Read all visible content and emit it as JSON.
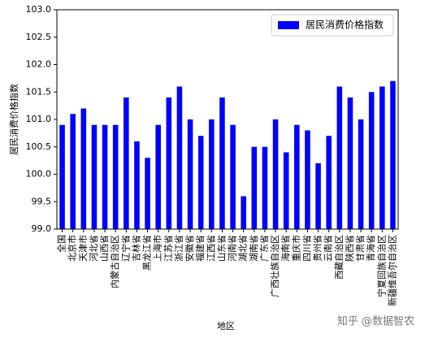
{
  "chart_data": {
    "type": "bar",
    "categories": [
      "全国",
      "北京市",
      "天津市",
      "河北省",
      "山西省",
      "内蒙古自治区",
      "辽宁省",
      "吉林省",
      "黑龙江省",
      "上海市",
      "江苏省",
      "浙江省",
      "安徽省",
      "福建省",
      "江西省",
      "山东省",
      "河南省",
      "湖北省",
      "湖南省",
      "广东省",
      "广西壮族自治区",
      "海南省",
      "重庆市",
      "四川省",
      "贵州省",
      "云南省",
      "西藏自治区",
      "陕西省",
      "甘肃省",
      "青海省",
      "宁夏回族自治区",
      "新疆维吾尔自治区"
    ],
    "series": [
      {
        "name": "居民消费价格指数",
        "color": "#0000ff",
        "values": [
          100.9,
          101.1,
          101.2,
          100.9,
          100.9,
          100.9,
          101.4,
          100.6,
          100.3,
          100.9,
          101.4,
          101.6,
          101.0,
          100.7,
          101.0,
          101.4,
          100.9,
          99.6,
          100.5,
          100.5,
          101.0,
          100.4,
          100.9,
          100.8,
          100.2,
          100.7,
          101.6,
          101.4,
          101.0,
          101.5,
          101.6,
          101.7
        ]
      }
    ],
    "ylim": [
      99,
      103
    ],
    "yticks": [
      {
        "value": 99,
        "label": "99.0"
      },
      99.5,
      {
        "value": 100,
        "label": "100.0"
      },
      100.5,
      {
        "value": 101,
        "label": "101.0"
      },
      101.5,
      {
        "value": 102,
        "label": "102.0"
      },
      102.5,
      {
        "value": 103,
        "label": "103.0"
      }
    ],
    "x_label": "地区",
    "y_label": "居民消费价格指数",
    "legend": "upper right",
    "watermark": "知乎 @数据智农"
  }
}
